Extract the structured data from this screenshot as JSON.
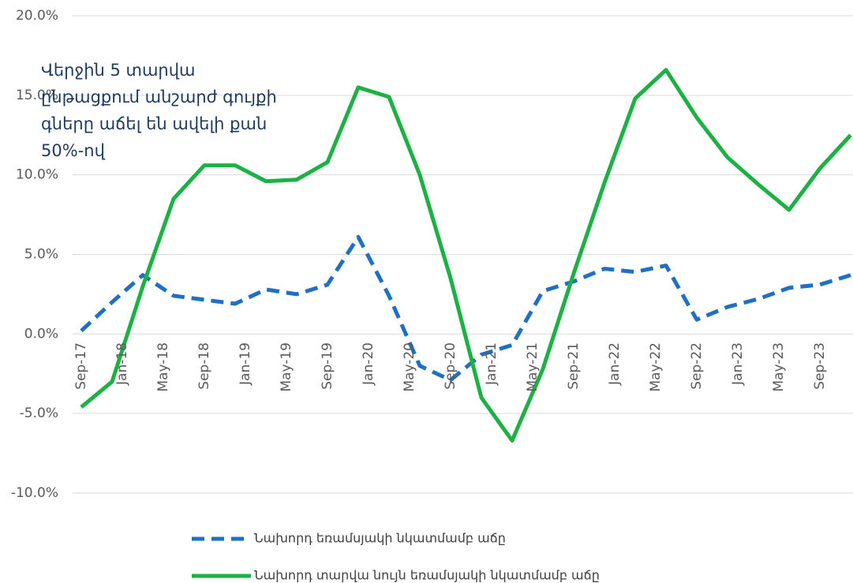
{
  "chart_data": {
    "type": "line",
    "annotation": [
      "Վերջին 5 տարվա",
      "ընթացքում անշարժ գույքի",
      "գները աճել են ավելի քան",
      "50%-ով"
    ],
    "x": [
      0,
      3,
      6,
      9,
      12,
      15,
      18,
      21,
      24,
      27,
      30,
      33,
      36,
      39,
      42,
      45,
      48,
      51,
      54,
      57,
      60,
      63,
      66,
      69,
      72,
      75
    ],
    "xlim": [
      0,
      75
    ],
    "xticks": [
      {
        "value": 0,
        "label": "Sep-17"
      },
      {
        "value": 4,
        "label": "Jan-18"
      },
      {
        "value": 8,
        "label": "May-18"
      },
      {
        "value": 12,
        "label": "Sep-18"
      },
      {
        "value": 16,
        "label": "Jan-19"
      },
      {
        "value": 20,
        "label": "May-19"
      },
      {
        "value": 24,
        "label": "Sep-19"
      },
      {
        "value": 28,
        "label": "Jan-20"
      },
      {
        "value": 32,
        "label": "May-20"
      },
      {
        "value": 36,
        "label": "Sep-20"
      },
      {
        "value": 40,
        "label": "Jan-21"
      },
      {
        "value": 44,
        "label": "May-21"
      },
      {
        "value": 48,
        "label": "Sep-21"
      },
      {
        "value": 52,
        "label": "Jan-22"
      },
      {
        "value": 56,
        "label": "May-22"
      },
      {
        "value": 60,
        "label": "Sep-22"
      },
      {
        "value": 64,
        "label": "Jan-23"
      },
      {
        "value": 68,
        "label": "May-23"
      },
      {
        "value": 72,
        "label": "Sep-23"
      }
    ],
    "ylim": [
      -10,
      20
    ],
    "yticks": [
      {
        "value": -10,
        "label": "-10.0%"
      },
      {
        "value": -5,
        "label": "-5.0%"
      },
      {
        "value": 0,
        "label": "0.0%"
      },
      {
        "value": 5,
        "label": "5.0%"
      },
      {
        "value": 10,
        "label": "10.0%"
      },
      {
        "value": 15,
        "label": "15.0%"
      },
      {
        "value": 20,
        "label": "20.0%"
      }
    ],
    "grid": true,
    "series": [
      {
        "name": "Նախորդ եռամսյակի նկատմամբ աճը",
        "color": "#1f6fc5",
        "dashed": true,
        "values": [
          0.2,
          2.0,
          3.7,
          2.4,
          2.15,
          1.9,
          2.8,
          2.5,
          3.1,
          6.1,
          2.4,
          -2.0,
          -2.9,
          -1.3,
          -0.7,
          2.7,
          3.3,
          4.1,
          3.9,
          4.3,
          0.9,
          1.7,
          2.2,
          2.9,
          3.1,
          3.7
        ]
      },
      {
        "name": "Նախորդ տարվա նույն եռամսյակի նկատմամբ աճը",
        "color": "#1db144",
        "dashed": false,
        "values": [
          -4.6,
          -3.0,
          3.0,
          8.5,
          10.6,
          10.6,
          9.6,
          9.7,
          10.8,
          15.5,
          14.9,
          10.0,
          3.5,
          -4.0,
          -6.7,
          -2.2,
          3.8,
          9.5,
          14.8,
          16.6,
          13.6,
          11.1,
          9.4,
          7.8,
          10.4,
          12.5
        ]
      }
    ]
  }
}
